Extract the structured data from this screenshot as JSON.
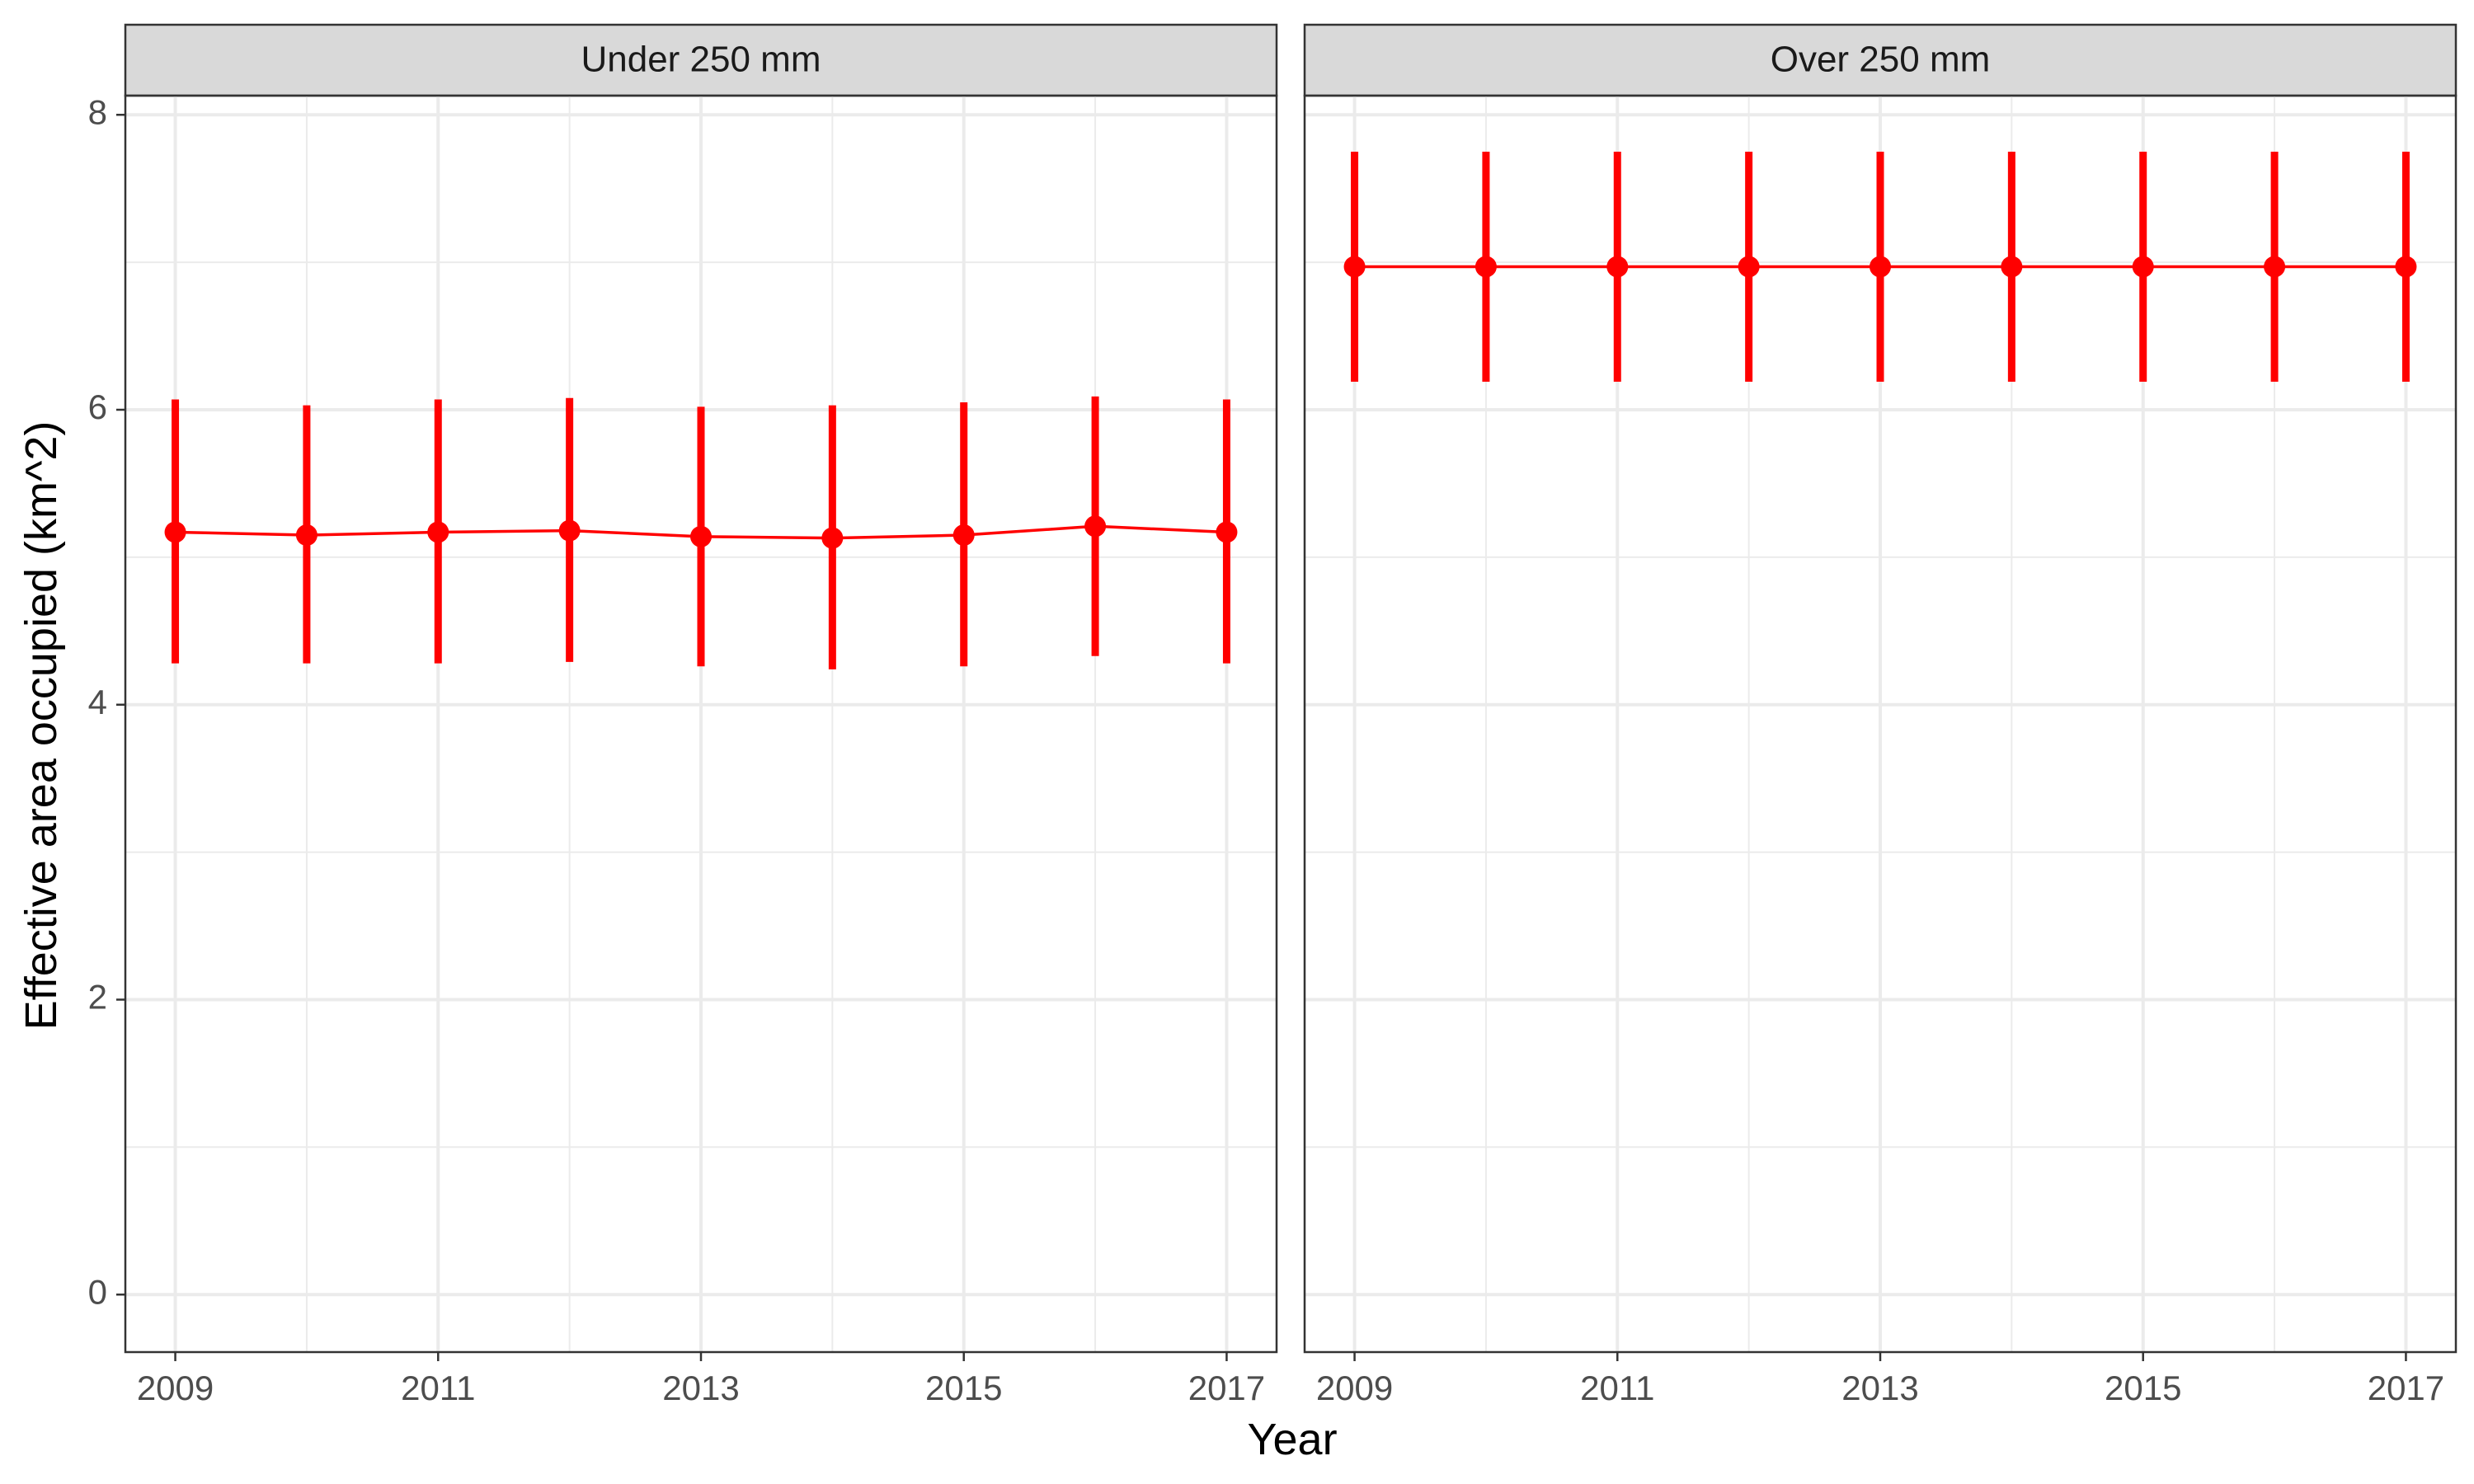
{
  "chart_data": {
    "type": "line",
    "xlabel": "Year",
    "ylabel": "Effective area occupied (km^2)",
    "xlim": [
      2008.62,
      2017.38
    ],
    "ylim": [
      -0.39,
      8.13
    ],
    "x_ticks": [
      2009,
      2011,
      2013,
      2015,
      2017
    ],
    "y_ticks": [
      0,
      2,
      4,
      6,
      8
    ],
    "grid": true,
    "legend": "none",
    "color": "#ff0000",
    "panels": [
      {
        "title": "Under 250 mm",
        "x": [
          2009,
          2010,
          2011,
          2012,
          2013,
          2014,
          2015,
          2016,
          2017
        ],
        "y": [
          5.17,
          5.15,
          5.17,
          5.18,
          5.14,
          5.13,
          5.15,
          5.21,
          5.17
        ],
        "ymin": [
          4.28,
          4.28,
          4.28,
          4.29,
          4.26,
          4.24,
          4.26,
          4.33,
          4.28
        ],
        "ymax": [
          6.07,
          6.03,
          6.07,
          6.08,
          6.02,
          6.03,
          6.05,
          6.09,
          6.07
        ]
      },
      {
        "title": "Over 250 mm",
        "x": [
          2009,
          2010,
          2011,
          2012,
          2013,
          2014,
          2015,
          2016,
          2017
        ],
        "y": [
          6.97,
          6.97,
          6.97,
          6.97,
          6.97,
          6.97,
          6.97,
          6.97,
          6.97
        ],
        "ymin": [
          6.19,
          6.19,
          6.19,
          6.19,
          6.19,
          6.19,
          6.19,
          6.19,
          6.19
        ],
        "ymax": [
          7.75,
          7.75,
          7.75,
          7.75,
          7.75,
          7.75,
          7.75,
          7.75,
          7.75
        ]
      }
    ]
  }
}
